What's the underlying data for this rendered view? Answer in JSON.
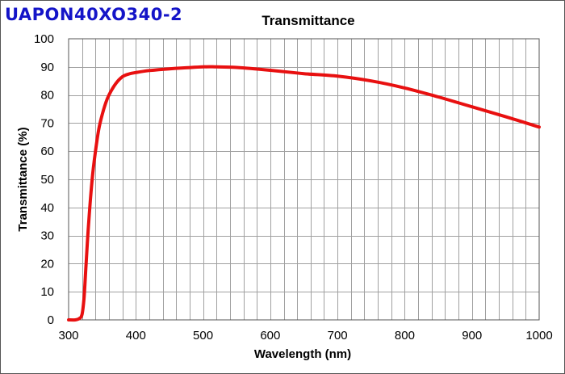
{
  "product_id": "UAPON40XO340-2",
  "chart_data": {
    "type": "line",
    "title": "Transmittance",
    "xlabel": "Wavelength (nm)",
    "ylabel": "Transmittance (%)",
    "xlim": [
      300,
      1000
    ],
    "ylim": [
      0,
      100
    ],
    "x_ticks": [
      300,
      400,
      500,
      600,
      700,
      800,
      900,
      1000
    ],
    "y_ticks": [
      0,
      10,
      20,
      30,
      40,
      50,
      60,
      70,
      80,
      90,
      100
    ],
    "x_minor_step": 20,
    "grid": true,
    "line_color": "#e81010",
    "series": [
      {
        "name": "Transmittance",
        "x": [
          300,
          310,
          316,
          320,
          323,
          326,
          330,
          335,
          340,
          345,
          350,
          355,
          360,
          370,
          380,
          390,
          400,
          420,
          450,
          500,
          520,
          550,
          600,
          650,
          700,
          750,
          800,
          850,
          900,
          950,
          1000
        ],
        "y": [
          0,
          0,
          0.5,
          2,
          8,
          20,
          35,
          50,
          60,
          68,
          73,
          77,
          80,
          84,
          86.5,
          87.5,
          88,
          88.7,
          89.3,
          90,
          90,
          89.8,
          88.8,
          87.6,
          86.7,
          85,
          82.5,
          79.3,
          75.8,
          72.3,
          68.6
        ]
      }
    ]
  }
}
